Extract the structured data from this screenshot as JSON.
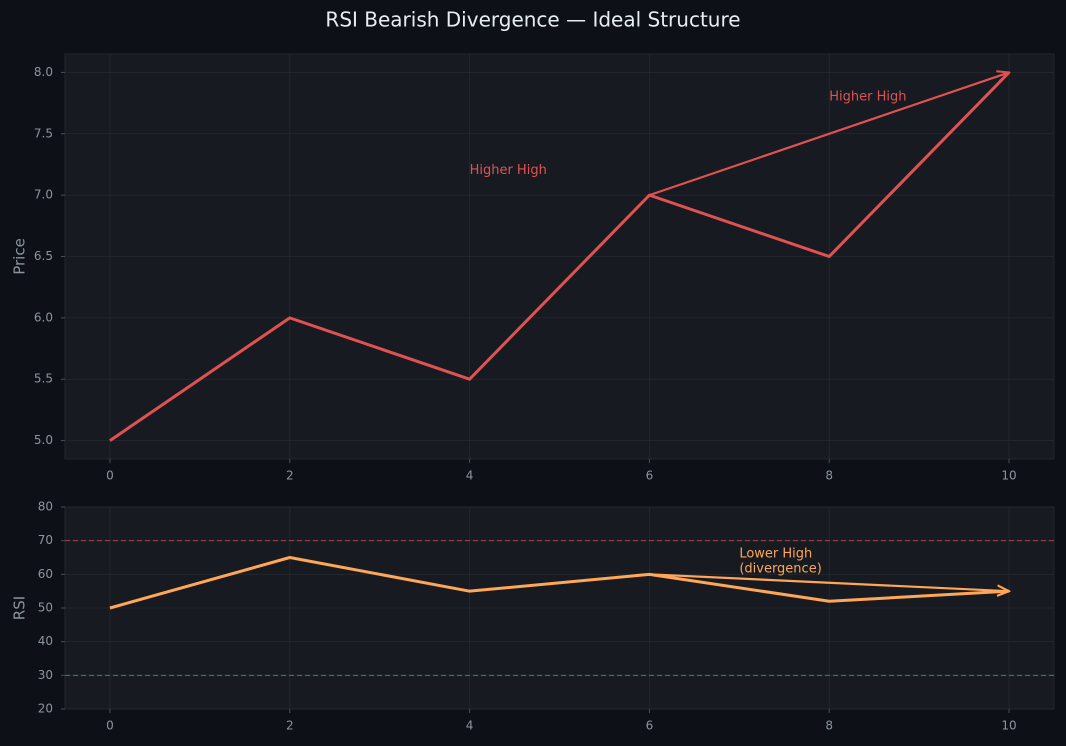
{
  "title": "RSI Bearish Divergence — Ideal Structure",
  "chart_data": [
    {
      "type": "line",
      "ylabel": "Price",
      "x": [
        0,
        2,
        4,
        6,
        8,
        10
      ],
      "series": [
        {
          "color": "#e05252",
          "values": [
            5,
            6,
            5.5,
            7,
            6.5,
            8
          ]
        }
      ],
      "xlim": [
        -0.5,
        10.5
      ],
      "ylim": [
        4.85,
        8.15
      ],
      "xticks": [
        0,
        2,
        4,
        6,
        8,
        10
      ],
      "yticks": [
        {
          "value": 5,
          "label": "5.0"
        },
        5.5,
        {
          "value": 6,
          "label": "6.0"
        },
        6.5,
        {
          "value": 7,
          "label": "7.0"
        },
        7.5,
        {
          "value": 8,
          "label": "8.0"
        }
      ],
      "grid": true,
      "annotations": [
        {
          "text": [
            "Higher High"
          ],
          "x": 4,
          "y": 7.2,
          "color": "#e05252"
        },
        {
          "text": [
            "Higher High"
          ],
          "x": 8,
          "y": 7.8,
          "color": "#e05252",
          "arrow_from": [
            6,
            7
          ],
          "arrow_to": [
            10,
            8
          ]
        }
      ]
    },
    {
      "type": "line",
      "ylabel": "RSI",
      "x": [
        0,
        2,
        4,
        6,
        8,
        10
      ],
      "series": [
        {
          "color": "#ffa657",
          "values": [
            50,
            65,
            55,
            60,
            52,
            55
          ]
        }
      ],
      "xlim": [
        -0.5,
        10.5
      ],
      "ylim": [
        20,
        80
      ],
      "xticks": [
        0,
        2,
        4,
        6,
        8,
        10
      ],
      "yticks": [
        20,
        30,
        40,
        50,
        60,
        70,
        80
      ],
      "grid": true,
      "hlines": [
        {
          "y": 70,
          "color": "#e05252"
        },
        {
          "y": 30,
          "color": "#3fb950"
        }
      ],
      "annotations": [
        {
          "text": [
            "Lower High",
            "(divergence)"
          ],
          "x": 7,
          "y": 66,
          "color": "#ffa657",
          "arrow_from": [
            6,
            60
          ],
          "arrow_to": [
            10,
            55
          ]
        }
      ]
    }
  ]
}
